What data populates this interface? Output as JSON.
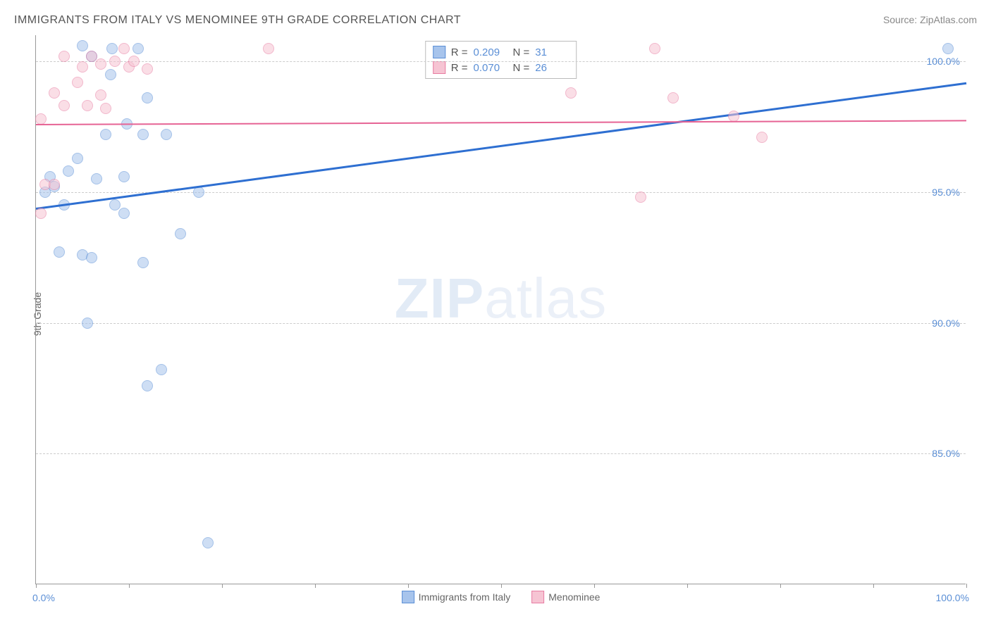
{
  "title": "IMMIGRANTS FROM ITALY VS MENOMINEE 9TH GRADE CORRELATION CHART",
  "source": "Source: ZipAtlas.com",
  "watermark_bold": "ZIP",
  "watermark_light": "atlas",
  "yaxis_title": "9th Grade",
  "chart": {
    "type": "scatter",
    "xlim": [
      0,
      100
    ],
    "ylim": [
      80,
      101
    ],
    "xtick_positions": [
      0,
      10,
      20,
      30,
      40,
      50,
      60,
      70,
      80,
      90,
      100
    ],
    "yticks": [
      {
        "value": 85,
        "label": "85.0%"
      },
      {
        "value": 90,
        "label": "90.0%"
      },
      {
        "value": 95,
        "label": "95.0%"
      },
      {
        "value": 100,
        "label": "100.0%"
      }
    ],
    "xaxis_min_label": "0.0%",
    "xaxis_max_label": "100.0%",
    "background_color": "#ffffff",
    "grid_color": "#cccccc",
    "marker_radius": 8,
    "marker_opacity": 0.55,
    "series": [
      {
        "name": "Immigrants from Italy",
        "fill_color": "#a7c4ec",
        "stroke_color": "#5b8fd6",
        "trend": {
          "y_at_x0": 94.4,
          "y_at_x100": 99.2,
          "color": "#2e6fd1",
          "width": 2.5
        },
        "R_label": "R =",
        "R": "0.209",
        "N_label": "N =",
        "N": "31",
        "points": [
          {
            "x": 1.5,
            "y": 95.6
          },
          {
            "x": 4.5,
            "y": 96.3
          },
          {
            "x": 5.0,
            "y": 100.6
          },
          {
            "x": 6.0,
            "y": 100.2
          },
          {
            "x": 7.5,
            "y": 97.2
          },
          {
            "x": 8.0,
            "y": 99.5
          },
          {
            "x": 8.2,
            "y": 100.5
          },
          {
            "x": 9.5,
            "y": 95.6
          },
          {
            "x": 9.8,
            "y": 97.6
          },
          {
            "x": 11.0,
            "y": 100.5
          },
          {
            "x": 12.0,
            "y": 98.6
          },
          {
            "x": 11.5,
            "y": 97.2
          },
          {
            "x": 14.0,
            "y": 97.2
          },
          {
            "x": 98.0,
            "y": 100.5
          },
          {
            "x": 3.0,
            "y": 94.5
          },
          {
            "x": 8.5,
            "y": 94.5
          },
          {
            "x": 9.5,
            "y": 94.2
          },
          {
            "x": 2.5,
            "y": 92.7
          },
          {
            "x": 5.0,
            "y": 92.6
          },
          {
            "x": 6.0,
            "y": 92.5
          },
          {
            "x": 11.5,
            "y": 92.3
          },
          {
            "x": 15.5,
            "y": 93.4
          },
          {
            "x": 17.5,
            "y": 95.0
          },
          {
            "x": 5.5,
            "y": 90.0
          },
          {
            "x": 13.5,
            "y": 88.2
          },
          {
            "x": 12.0,
            "y": 87.6
          },
          {
            "x": 18.5,
            "y": 81.6
          },
          {
            "x": 1.0,
            "y": 95.0
          },
          {
            "x": 2.0,
            "y": 95.2
          },
          {
            "x": 3.5,
            "y": 95.8
          },
          {
            "x": 6.5,
            "y": 95.5
          }
        ]
      },
      {
        "name": "Menominee",
        "fill_color": "#f6c4d3",
        "stroke_color": "#e87da2",
        "trend": {
          "y_at_x0": 97.6,
          "y_at_x100": 97.75,
          "color": "#e66394",
          "width": 2
        },
        "R_label": "R =",
        "R": "0.070",
        "N_label": "N =",
        "N": "26",
        "points": [
          {
            "x": 0.5,
            "y": 97.8
          },
          {
            "x": 1.0,
            "y": 95.3
          },
          {
            "x": 2.0,
            "y": 98.8
          },
          {
            "x": 2.0,
            "y": 95.3
          },
          {
            "x": 3.0,
            "y": 98.3
          },
          {
            "x": 3.0,
            "y": 100.2
          },
          {
            "x": 4.5,
            "y": 99.2
          },
          {
            "x": 5.0,
            "y": 99.8
          },
          {
            "x": 5.5,
            "y": 98.3
          },
          {
            "x": 6.0,
            "y": 100.2
          },
          {
            "x": 7.0,
            "y": 98.7
          },
          {
            "x": 7.0,
            "y": 99.9
          },
          {
            "x": 7.5,
            "y": 98.2
          },
          {
            "x": 8.5,
            "y": 100.0
          },
          {
            "x": 9.5,
            "y": 100.5
          },
          {
            "x": 10.0,
            "y": 99.8
          },
          {
            "x": 10.5,
            "y": 100.0
          },
          {
            "x": 12.0,
            "y": 99.7
          },
          {
            "x": 25.0,
            "y": 100.5
          },
          {
            "x": 57.5,
            "y": 98.8
          },
          {
            "x": 66.5,
            "y": 100.5
          },
          {
            "x": 68.5,
            "y": 98.6
          },
          {
            "x": 65.0,
            "y": 94.8
          },
          {
            "x": 75.0,
            "y": 97.9
          },
          {
            "x": 78.0,
            "y": 97.1
          },
          {
            "x": 0.5,
            "y": 94.2
          }
        ]
      }
    ]
  },
  "bottom_legend": [
    {
      "label": "Immigrants from Italy",
      "fill": "#a7c4ec",
      "stroke": "#5b8fd6"
    },
    {
      "label": "Menominee",
      "fill": "#f6c4d3",
      "stroke": "#e87da2"
    }
  ]
}
